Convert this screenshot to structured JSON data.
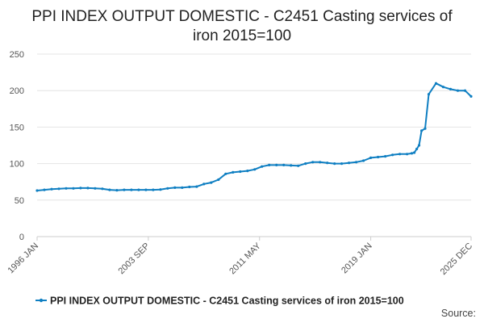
{
  "chart_data": {
    "type": "line",
    "title_lines": [
      "PPI INDEX OUTPUT DOMESTIC - C2451 Casting services of",
      "iron 2015=100"
    ],
    "xlabel": "",
    "ylabel": "",
    "ylim": [
      0,
      250
    ],
    "yticks": [
      0,
      50,
      100,
      150,
      200,
      250
    ],
    "xlim": [
      1996.0,
      2025.917
    ],
    "xticks": [
      {
        "label": "1996 JAN",
        "value": 1996.0
      },
      {
        "label": "2003 SEP",
        "value": 2003.667
      },
      {
        "label": "2011 MAY",
        "value": 2011.333
      },
      {
        "label": "2019 JAN",
        "value": 2019.0
      },
      {
        "label": "2025 DEC",
        "value": 2025.917
      }
    ],
    "grid": true,
    "legend_position": "bottom",
    "series": [
      {
        "name": "PPI INDEX OUTPUT DOMESTIC - C2451 Casting services of iron 2015=100",
        "color": "#0f7fc2",
        "x": [
          1996.0,
          1996.5,
          1997.0,
          1997.5,
          1998.0,
          1998.5,
          1999.0,
          1999.5,
          2000.0,
          2000.5,
          2001.0,
          2001.5,
          2002.0,
          2002.5,
          2003.0,
          2003.5,
          2004.0,
          2004.5,
          2005.0,
          2005.5,
          2006.0,
          2006.5,
          2007.0,
          2007.5,
          2008.0,
          2008.5,
          2009.0,
          2009.5,
          2010.0,
          2010.5,
          2011.0,
          2011.5,
          2012.0,
          2012.5,
          2013.0,
          2013.5,
          2014.0,
          2014.5,
          2015.0,
          2015.5,
          2016.0,
          2016.5,
          2017.0,
          2017.5,
          2018.0,
          2018.5,
          2019.0,
          2019.5,
          2020.0,
          2020.5,
          2021.0,
          2021.5,
          2021.83,
          2022.0,
          2022.17,
          2022.33,
          2022.5,
          2022.75,
          2023.0,
          2023.5,
          2024.0,
          2024.5,
          2025.0,
          2025.5,
          2025.917
        ],
        "values": [
          63,
          64,
          65,
          65.5,
          66,
          66,
          66.5,
          66.5,
          66,
          65.5,
          64,
          63.5,
          64,
          64,
          64,
          64,
          64,
          64.5,
          66,
          67,
          67,
          68,
          68.5,
          72,
          74,
          78,
          86,
          88,
          89,
          90,
          92,
          96,
          98,
          98,
          98,
          97.5,
          97,
          100,
          102,
          102,
          101,
          100,
          100,
          101,
          102,
          104,
          108,
          109,
          110,
          112,
          113,
          113,
          114,
          115,
          120,
          125,
          145,
          148,
          195,
          210,
          205,
          202,
          200,
          200,
          192
        ]
      }
    ]
  },
  "source_label": "Source:"
}
